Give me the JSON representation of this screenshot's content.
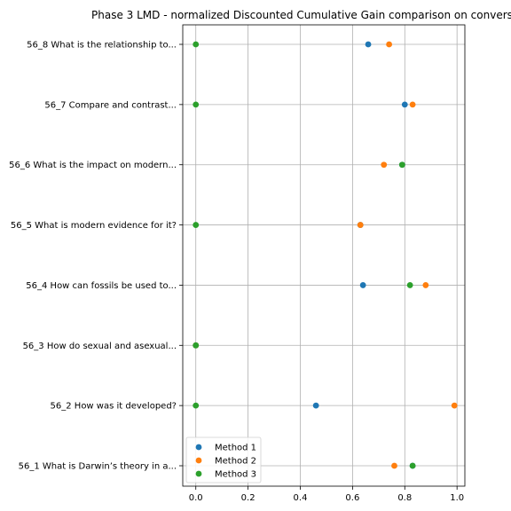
{
  "chart_data": {
    "type": "scatter",
    "title": "Phase 3 LMD - normalized Discounted Cumulative Gain comparison on convers",
    "xlabel": "",
    "ylabel": "",
    "xlim": [
      -0.05,
      1.03
    ],
    "x_ticks": [
      "0.0",
      "0.2",
      "0.4",
      "0.6",
      "0.8",
      "1.0"
    ],
    "x_tick_values": [
      0.0,
      0.2,
      0.4,
      0.6,
      0.8,
      1.0
    ],
    "grid": true,
    "legend_position": "lower-left",
    "categories": [
      "56_1 What is Darwin’s theory in a...",
      "56_2 How was it developed?",
      "56_3 How do sexual and asexual...",
      "56_4 How can fossils be used to...",
      "56_5 What is modern evidence for it?",
      "56_6 What is the impact on modern...",
      "56_7 Compare and contrast...",
      "56_8 What is the relationship to..."
    ],
    "series": [
      {
        "name": "Method 1",
        "color": "#1f77b4",
        "values": [
          0.83,
          0.46,
          0.0,
          0.64,
          0.63,
          0.79,
          0.8,
          0.66
        ]
      },
      {
        "name": "Method 2",
        "color": "#ff7f0e",
        "values": [
          0.76,
          0.99,
          0.0,
          0.88,
          0.63,
          0.72,
          0.83,
          0.74
        ]
      },
      {
        "name": "Method 3",
        "color": "#2ca02c",
        "values": [
          0.83,
          0.0,
          0.0,
          0.82,
          0.0,
          0.79,
          0.0,
          0.0
        ]
      }
    ]
  }
}
